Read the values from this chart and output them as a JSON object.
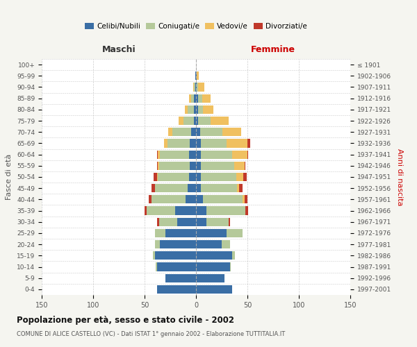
{
  "age_groups": [
    "0-4",
    "5-9",
    "10-14",
    "15-19",
    "20-24",
    "25-29",
    "30-34",
    "35-39",
    "40-44",
    "45-49",
    "50-54",
    "55-59",
    "60-64",
    "65-69",
    "70-74",
    "75-79",
    "80-84",
    "85-89",
    "90-94",
    "95-99",
    "100+"
  ],
  "birth_years": [
    "1997-2001",
    "1992-1996",
    "1987-1991",
    "1982-1986",
    "1977-1981",
    "1972-1976",
    "1967-1971",
    "1962-1966",
    "1957-1961",
    "1952-1956",
    "1947-1951",
    "1942-1946",
    "1937-1941",
    "1932-1936",
    "1927-1931",
    "1922-1926",
    "1917-1921",
    "1912-1916",
    "1907-1911",
    "1902-1906",
    "≤ 1901"
  ],
  "maschi": {
    "celibi": [
      38,
      30,
      38,
      40,
      35,
      30,
      18,
      20,
      10,
      8,
      7,
      6,
      7,
      6,
      5,
      2,
      2,
      2,
      1,
      1,
      0
    ],
    "coniugati": [
      0,
      0,
      1,
      2,
      5,
      10,
      18,
      28,
      33,
      32,
      30,
      30,
      28,
      22,
      18,
      10,
      6,
      3,
      1,
      0,
      0
    ],
    "vedovi": [
      0,
      0,
      0,
      0,
      0,
      0,
      0,
      0,
      0,
      0,
      1,
      1,
      2,
      3,
      4,
      5,
      3,
      2,
      1,
      0,
      0
    ],
    "divorziati": [
      0,
      0,
      0,
      0,
      0,
      0,
      2,
      2,
      3,
      3,
      3,
      1,
      1,
      0,
      0,
      0,
      0,
      0,
      0,
      0,
      0
    ]
  },
  "femmine": {
    "nubili": [
      35,
      28,
      33,
      35,
      25,
      30,
      10,
      10,
      7,
      5,
      5,
      5,
      5,
      5,
      4,
      2,
      2,
      2,
      1,
      1,
      0
    ],
    "coniugate": [
      0,
      0,
      1,
      3,
      8,
      15,
      22,
      38,
      38,
      35,
      34,
      32,
      30,
      25,
      22,
      12,
      5,
      4,
      1,
      0,
      0
    ],
    "vedove": [
      0,
      0,
      0,
      0,
      0,
      0,
      0,
      0,
      2,
      2,
      7,
      10,
      15,
      20,
      18,
      18,
      10,
      8,
      6,
      2,
      0
    ],
    "divorziate": [
      0,
      0,
      0,
      0,
      0,
      0,
      1,
      3,
      3,
      3,
      3,
      1,
      1,
      3,
      0,
      0,
      0,
      0,
      0,
      0,
      0
    ]
  },
  "colors": {
    "celibi": "#3a6ea5",
    "coniugati": "#b5c99a",
    "vedovi": "#f0c060",
    "divorziati": "#c0392b"
  },
  "title": "Popolazione per età, sesso e stato civile - 2002",
  "subtitle": "COMUNE DI ALICE CASTELLO (VC) - Dati ISTAT 1° gennaio 2002 - Elaborazione TUTTITALIA.IT",
  "xlabel_left": "Maschi",
  "xlabel_right": "Femmine",
  "ylabel_left": "Fasce di età",
  "ylabel_right": "Anni di nascita",
  "xlim": 150,
  "background_color": "#f5f5f0",
  "plot_bg": "#ffffff",
  "grid_color": "#cccccc"
}
